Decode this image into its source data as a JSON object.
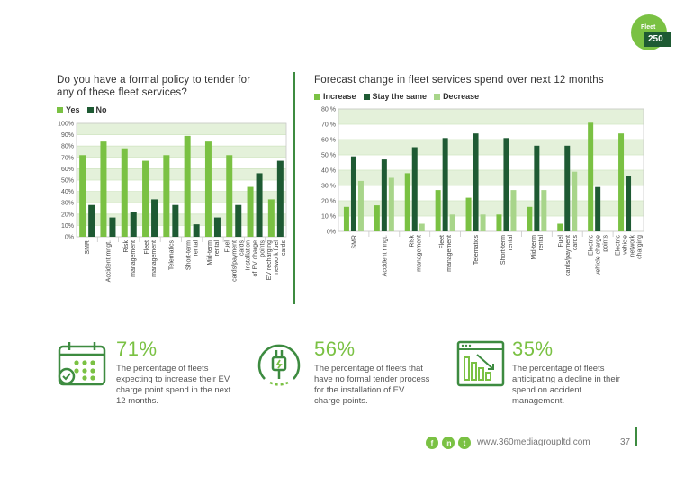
{
  "logo": {
    "text": "Fleet",
    "number": "250"
  },
  "chart_data": [
    {
      "type": "bar",
      "title": "Do you have a formal policy to tender for any of these fleet services?",
      "categories": [
        "SMR",
        "Accident mngt.",
        "Risk management",
        "Fleet management",
        "Telematics",
        "Short-term rental",
        "Mid-term rental",
        "Fuel cards/payment cards",
        "Installation of EV charge points",
        "EV recharging network fuel cards"
      ],
      "series": [
        {
          "name": "Yes",
          "values": [
            72,
            84,
            78,
            67,
            72,
            89,
            84,
            72,
            44,
            33
          ]
        },
        {
          "name": "No",
          "values": [
            28,
            17,
            22,
            33,
            28,
            11,
            17,
            28,
            56,
            67
          ]
        }
      ],
      "ylim": [
        0,
        100
      ],
      "yticks": [
        "0%",
        "10%",
        "20%",
        "30%",
        "40%",
        "50%",
        "60%",
        "70%",
        "80%",
        "90%",
        "100%"
      ],
      "colors": {
        "Yes": "#7ac143",
        "No": "#1e5a33"
      }
    },
    {
      "type": "bar",
      "title": "Forecast change in fleet services spend over next 12 months",
      "categories": [
        "SMR",
        "Accident mngt.",
        "Risk management",
        "Fleet management",
        "Telematics",
        "Short-term rental",
        "Mid-term rental",
        "Fuel cards/payment cards",
        "Electric vehicle charge points",
        "Electric vehicle network charging"
      ],
      "series": [
        {
          "name": "Increase",
          "values": [
            16,
            17,
            38,
            27,
            22,
            11,
            16,
            5,
            71,
            64
          ]
        },
        {
          "name": "Stay the same",
          "values": [
            49,
            47,
            55,
            61,
            64,
            61,
            56,
            56,
            29,
            36
          ]
        },
        {
          "name": "Decrease",
          "values": [
            33,
            35,
            5,
            11,
            11,
            27,
            27,
            39,
            0,
            0
          ]
        }
      ],
      "ylim": [
        0,
        80
      ],
      "yticks": [
        "0%",
        "10 %",
        "20 %",
        "30 %",
        "40 %",
        "50 %",
        "60 %",
        "70 %",
        "80 %"
      ],
      "colors": {
        "Increase": "#7ac143",
        "Stay the same": "#1e5a33",
        "Decrease": "#a8d58a"
      }
    }
  ],
  "stats": [
    {
      "pct": "71%",
      "desc": "The percentage of fleets expecting to increase their EV charge point spend in the next 12 months.",
      "icon": "calendar-check-icon"
    },
    {
      "pct": "56%",
      "desc": "The percentage of  fleets that have no formal tender process for the installation of EV charge points.",
      "icon": "ev-plug-icon"
    },
    {
      "pct": "35%",
      "desc": "The percentage of fleets anticipating a decline in their spend on accident management.",
      "icon": "declining-chart-icon"
    }
  ],
  "footer": {
    "url": "www.360mediagroupltd.com",
    "page": "37"
  }
}
